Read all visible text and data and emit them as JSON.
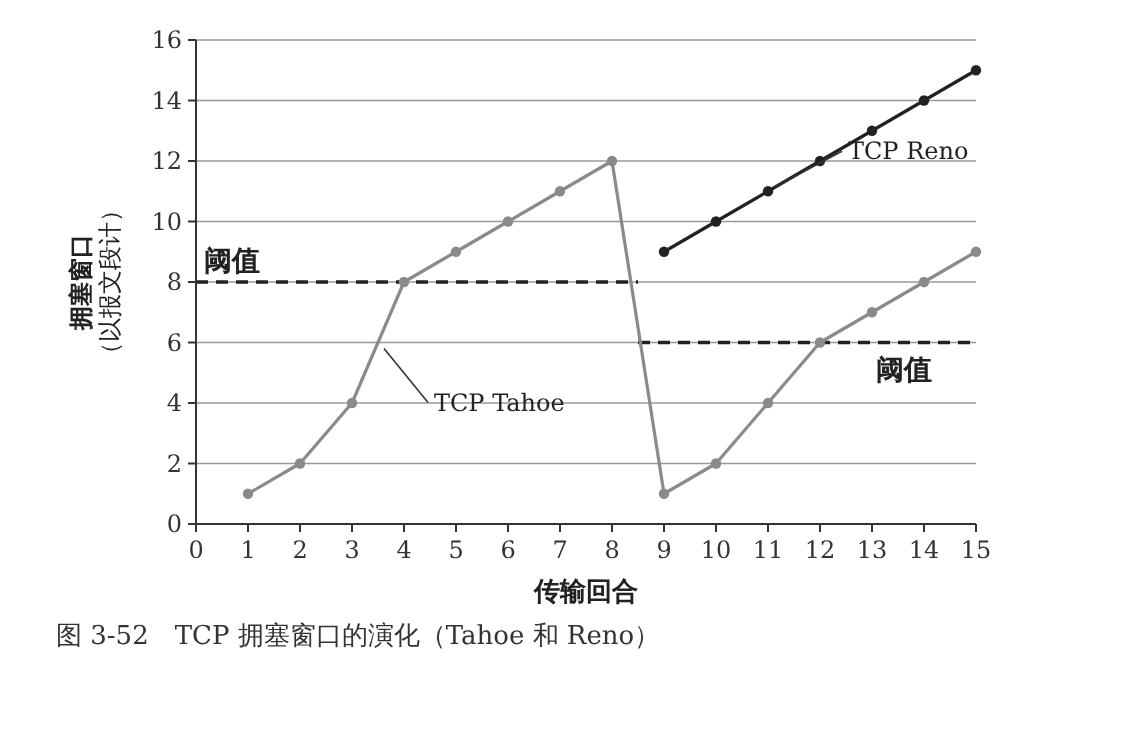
{
  "chart_data": {
    "type": "line",
    "xlabel": "传输回合",
    "ylabel": "拥塞窗口（以报文段计）",
    "xlim": [
      0,
      15
    ],
    "ylim": [
      0,
      16
    ],
    "xticks": [
      0,
      1,
      2,
      3,
      4,
      5,
      6,
      7,
      8,
      9,
      10,
      11,
      12,
      13,
      14,
      15
    ],
    "yticks": [
      0,
      2,
      4,
      6,
      8,
      10,
      12,
      14,
      16
    ],
    "grid": "y",
    "marker": "circle",
    "line_style": "solid",
    "series": [
      {
        "name": "TCP Tahoe",
        "color": "#8a8a8a",
        "x": [
          1,
          2,
          3,
          4,
          5,
          6,
          7,
          8,
          9,
          10,
          11,
          12,
          13,
          14,
          15
        ],
        "values": [
          1,
          2,
          4,
          8,
          9,
          10,
          11,
          12,
          1,
          2,
          4,
          6,
          7,
          8,
          9
        ]
      },
      {
        "name": "TCP Reno",
        "color": "#222222",
        "x": [
          9,
          10,
          11,
          12,
          13,
          14,
          15
        ],
        "values": [
          9,
          10,
          11,
          12,
          13,
          14,
          15
        ]
      }
    ],
    "ref_lines": [
      {
        "axis": "y",
        "value": 8,
        "label": "阈值",
        "line_style": "dashed"
      },
      {
        "axis": "y",
        "value": 6,
        "label": "阈值",
        "line_style": "dashed"
      }
    ],
    "annotations": [
      "图 3-52　TCP 拥塞窗口的演化（Tahoe 和 Reno）"
    ]
  }
}
